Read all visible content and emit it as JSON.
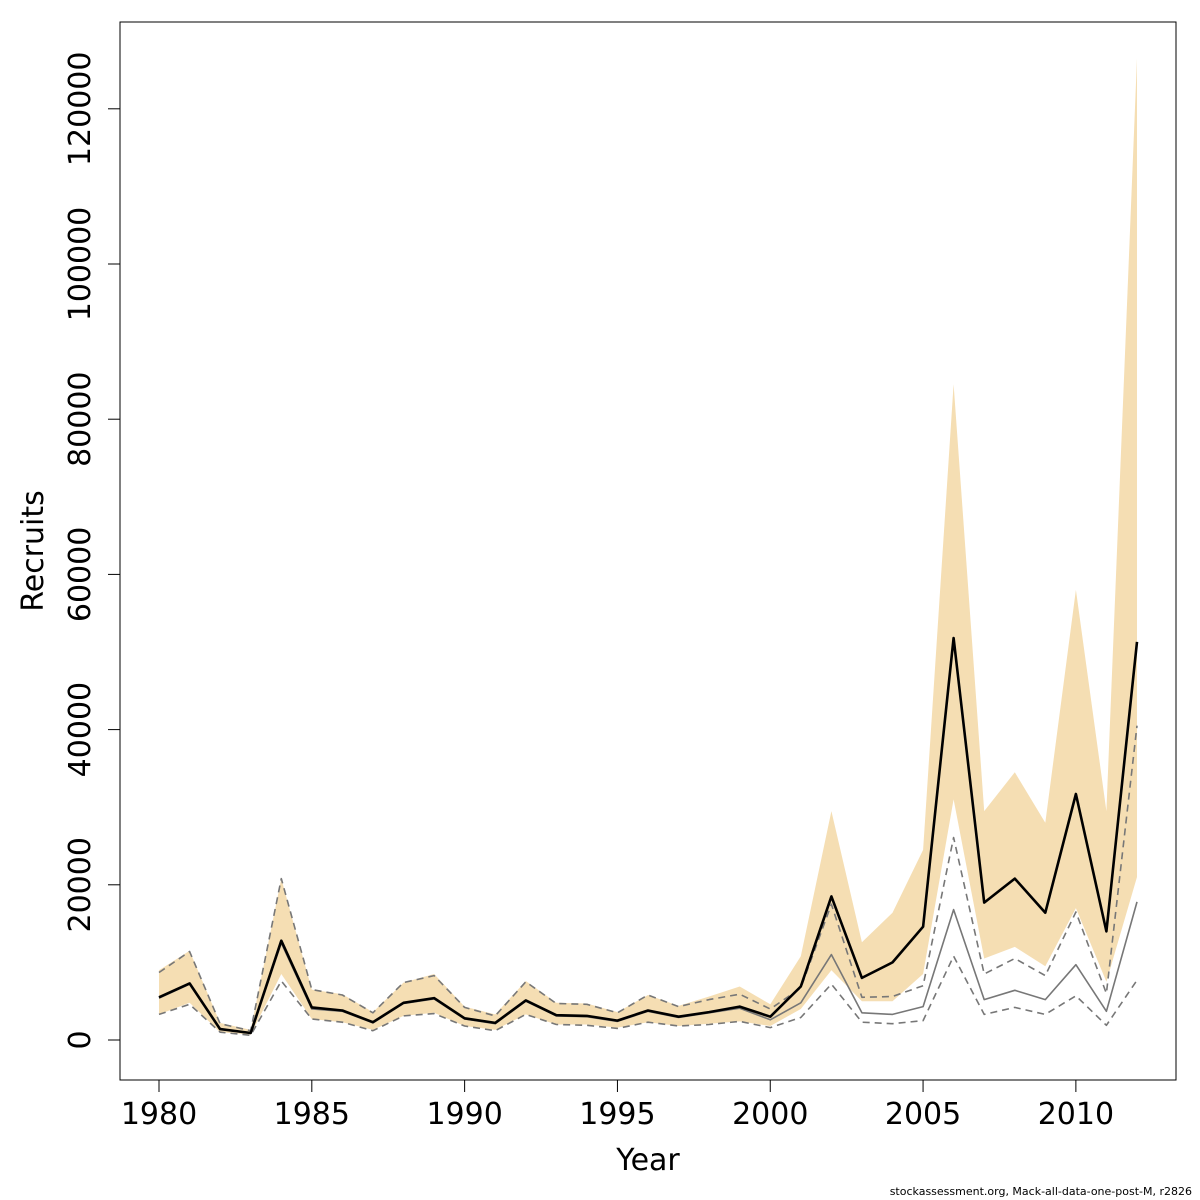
{
  "chart_data": {
    "type": "line",
    "title": "",
    "xlabel": "Year",
    "ylabel": "Recruits",
    "xlim": [
      1980,
      2012
    ],
    "ylim": [
      0,
      130000
    ],
    "x_ticks": [
      1980,
      1985,
      1990,
      1995,
      2000,
      2005,
      2010
    ],
    "x_tick_labels": [
      "1980",
      "1985",
      "1990",
      "1995",
      "2000",
      "2005",
      "2010"
    ],
    "y_ticks": [
      0,
      20000,
      40000,
      60000,
      80000,
      100000,
      120000
    ],
    "y_tick_labels": [
      "0",
      "20000",
      "40000",
      "60000",
      "80000",
      "100000",
      "120000"
    ],
    "grid": false,
    "x": [
      1980,
      1981,
      1982,
      1983,
      1984,
      1985,
      1986,
      1987,
      1988,
      1989,
      1990,
      1991,
      1992,
      1993,
      1994,
      1995,
      1996,
      1997,
      1998,
      1999,
      2000,
      2001,
      2002,
      2003,
      2004,
      2005,
      2006,
      2007,
      2008,
      2009,
      2010,
      2011,
      2012
    ],
    "band": {
      "color": "#F5DEB3",
      "lower": [
        3300,
        4800,
        1000,
        700,
        8500,
        2700,
        2300,
        1300,
        3100,
        3500,
        1800,
        1300,
        3300,
        2000,
        2000,
        1600,
        2300,
        1800,
        2100,
        2400,
        1800,
        4000,
        9000,
        5000,
        5000,
        8500,
        31000,
        10500,
        12000,
        9500,
        17000,
        7500,
        21000
      ],
      "upper": [
        9000,
        11500,
        2200,
        1300,
        20800,
        6500,
        5900,
        3600,
        7400,
        8500,
        4300,
        3300,
        7600,
        4800,
        4700,
        3600,
        5800,
        4400,
        5600,
        6900,
        4600,
        10800,
        29500,
        12600,
        16400,
        24500,
        84500,
        29500,
        34500,
        28000,
        58000,
        29500,
        126500
      ]
    },
    "series": [
      {
        "role": "estimate",
        "color": "#000000",
        "dash": "solid",
        "values": [
          5500,
          7300,
          1400,
          900,
          12800,
          4200,
          3800,
          2300,
          4800,
          5400,
          2800,
          2200,
          5100,
          3200,
          3100,
          2500,
          3800,
          3000,
          3600,
          4300,
          3000,
          6900,
          18500,
          8000,
          10000,
          14600,
          51800,
          17700,
          20800,
          16400,
          31700,
          14000,
          51300
        ]
      },
      {
        "role": "alt-estimate",
        "color": "#777777",
        "dash": "solid",
        "values": [
          5400,
          7200,
          1400,
          900,
          12500,
          4000,
          3700,
          2200,
          4700,
          5300,
          2700,
          2100,
          5000,
          3100,
          3000,
          2400,
          3700,
          2900,
          3500,
          4100,
          2600,
          4800,
          11000,
          3500,
          3300,
          4300,
          16800,
          5200,
          6400,
          5200,
          9700,
          3700,
          17800
        ]
      },
      {
        "role": "alt-upper",
        "color": "#777777",
        "dash": "dashed",
        "values": [
          8700,
          11400,
          2100,
          1200,
          20800,
          6500,
          5800,
          3500,
          7400,
          8300,
          4200,
          3100,
          7500,
          4700,
          4600,
          3500,
          5800,
          4300,
          5200,
          5900,
          4000,
          6700,
          17500,
          5500,
          5600,
          7000,
          26100,
          8500,
          10500,
          8300,
          16500,
          6000,
          40500
        ]
      },
      {
        "role": "alt-lower",
        "color": "#777777",
        "dash": "dashed",
        "values": [
          3300,
          4600,
          1000,
          600,
          7600,
          2700,
          2300,
          1200,
          3100,
          3400,
          1800,
          1200,
          3300,
          2000,
          1900,
          1500,
          2300,
          1800,
          2000,
          2400,
          1600,
          2900,
          7200,
          2300,
          2100,
          2500,
          10800,
          3300,
          4200,
          3300,
          5700,
          1900,
          7700
        ]
      }
    ]
  },
  "footer_text": "stockassessment.org, Mack-all-data-one-post-M, r2826"
}
